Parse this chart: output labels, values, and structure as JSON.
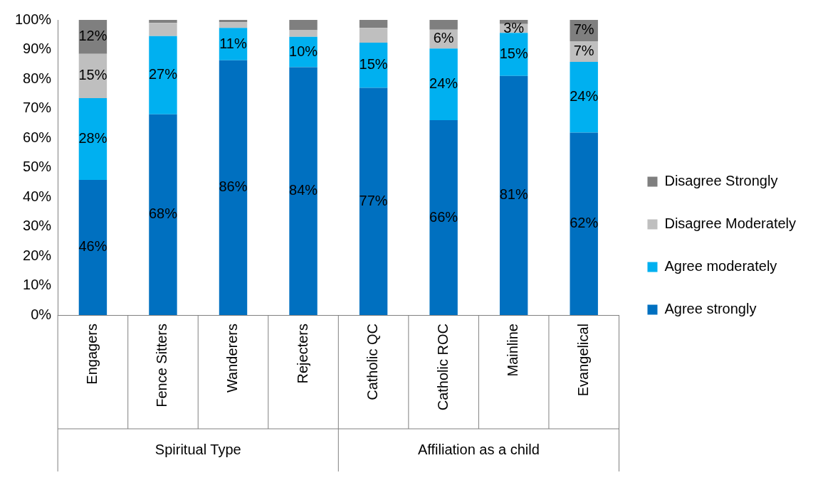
{
  "chart_data": {
    "type": "bar",
    "stacked": true,
    "categories": [
      "Engagers",
      "Fence Sitters",
      "Wanderers",
      "Rejecters",
      "Catholic QC",
      "Catholic ROC",
      "Mainline",
      "Evangelical"
    ],
    "series": [
      {
        "name": "Agree strongly",
        "color": "#0070c0",
        "values": [
          45.8,
          68,
          86.3,
          84,
          77,
          66,
          81,
          61.8
        ],
        "value_labels": [
          "46%",
          "68%",
          "86%",
          "84%",
          "77%",
          "66%",
          "81%",
          "62%"
        ]
      },
      {
        "name": "Agree moderately",
        "color": "#00b0f0",
        "values": [
          27.7,
          26.5,
          11,
          10.3,
          15.3,
          24.3,
          14.6,
          24
        ],
        "value_labels": [
          "28%",
          "27%",
          "11%",
          "10%",
          "15%",
          "24%",
          "15%",
          "24%"
        ]
      },
      {
        "name": "Disagree Moderately",
        "color": "#bfbfbf",
        "values": [
          15,
          4.5,
          1.9,
          2.2,
          5,
          6.4,
          3,
          7
        ],
        "value_labels": [
          "15%",
          null,
          null,
          null,
          null,
          "6%",
          "3%",
          "7%"
        ]
      },
      {
        "name": "Disagree Strongly",
        "color": "#7f7f7f",
        "values": [
          11.5,
          1,
          0.8,
          3.5,
          2.7,
          3.3,
          1.4,
          7.2
        ],
        "value_labels": [
          "12%",
          null,
          null,
          null,
          null,
          null,
          null,
          "7%"
        ]
      }
    ],
    "ylim": [
      0,
      100
    ],
    "yticks": [
      {
        "value": 0,
        "label": "0%"
      },
      {
        "value": 10,
        "label": "10%"
      },
      {
        "value": 20,
        "label": "20%"
      },
      {
        "value": 30,
        "label": "30%"
      },
      {
        "value": 40,
        "label": "40%"
      },
      {
        "value": 50,
        "label": "50%"
      },
      {
        "value": 60,
        "label": "60%"
      },
      {
        "value": 70,
        "label": "70%"
      },
      {
        "value": 80,
        "label": "80%"
      },
      {
        "value": 90,
        "label": "90%"
      },
      {
        "value": 100,
        "label": "100%"
      }
    ],
    "annotations": [
      "Spiritual Type",
      "Affiliation as a child"
    ],
    "grid": false,
    "legend": "right"
  }
}
